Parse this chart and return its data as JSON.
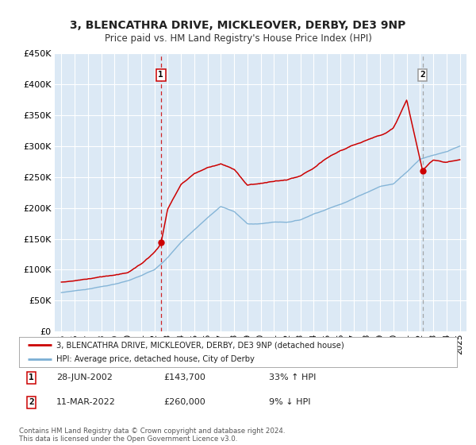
{
  "title": "3, BLENCATHRA DRIVE, MICKLEOVER, DERBY, DE3 9NP",
  "subtitle": "Price paid vs. HM Land Registry's House Price Index (HPI)",
  "background_color": "#dce9f5",
  "plot_bg_color": "#dce9f5",
  "fig_bg_color": "#ffffff",
  "grid_color": "#ffffff",
  "red_line_color": "#cc0000",
  "blue_line_color": "#7bafd4",
  "annotation1_date": "28-JUN-2002",
  "annotation1_price": "£143,700",
  "annotation1_hpi": "33% ↑ HPI",
  "annotation2_date": "11-MAR-2022",
  "annotation2_price": "£260,000",
  "annotation2_hpi": "9% ↓ HPI",
  "marker1_x": 2002.49,
  "marker1_y": 143700,
  "marker2_x": 2022.19,
  "marker2_y": 260000,
  "vline1_x": 2002.49,
  "vline2_x": 2022.19,
  "ylim": [
    0,
    450000
  ],
  "xlim": [
    1994.5,
    2025.5
  ],
  "yticks": [
    0,
    50000,
    100000,
    150000,
    200000,
    250000,
    300000,
    350000,
    400000,
    450000
  ],
  "ytick_labels": [
    "£0",
    "£50K",
    "£100K",
    "£150K",
    "£200K",
    "£250K",
    "£300K",
    "£350K",
    "£400K",
    "£450K"
  ],
  "xticks": [
    1995,
    1996,
    1997,
    1998,
    1999,
    2000,
    2001,
    2002,
    2003,
    2004,
    2005,
    2006,
    2007,
    2008,
    2009,
    2010,
    2011,
    2012,
    2013,
    2014,
    2015,
    2016,
    2017,
    2018,
    2019,
    2020,
    2021,
    2022,
    2023,
    2024,
    2025
  ],
  "legend_label_red": "3, BLENCATHRA DRIVE, MICKLEOVER, DERBY, DE3 9NP (detached house)",
  "legend_label_blue": "HPI: Average price, detached house, City of Derby",
  "footnote": "Contains HM Land Registry data © Crown copyright and database right 2024.\nThis data is licensed under the Open Government Licence v3.0."
}
